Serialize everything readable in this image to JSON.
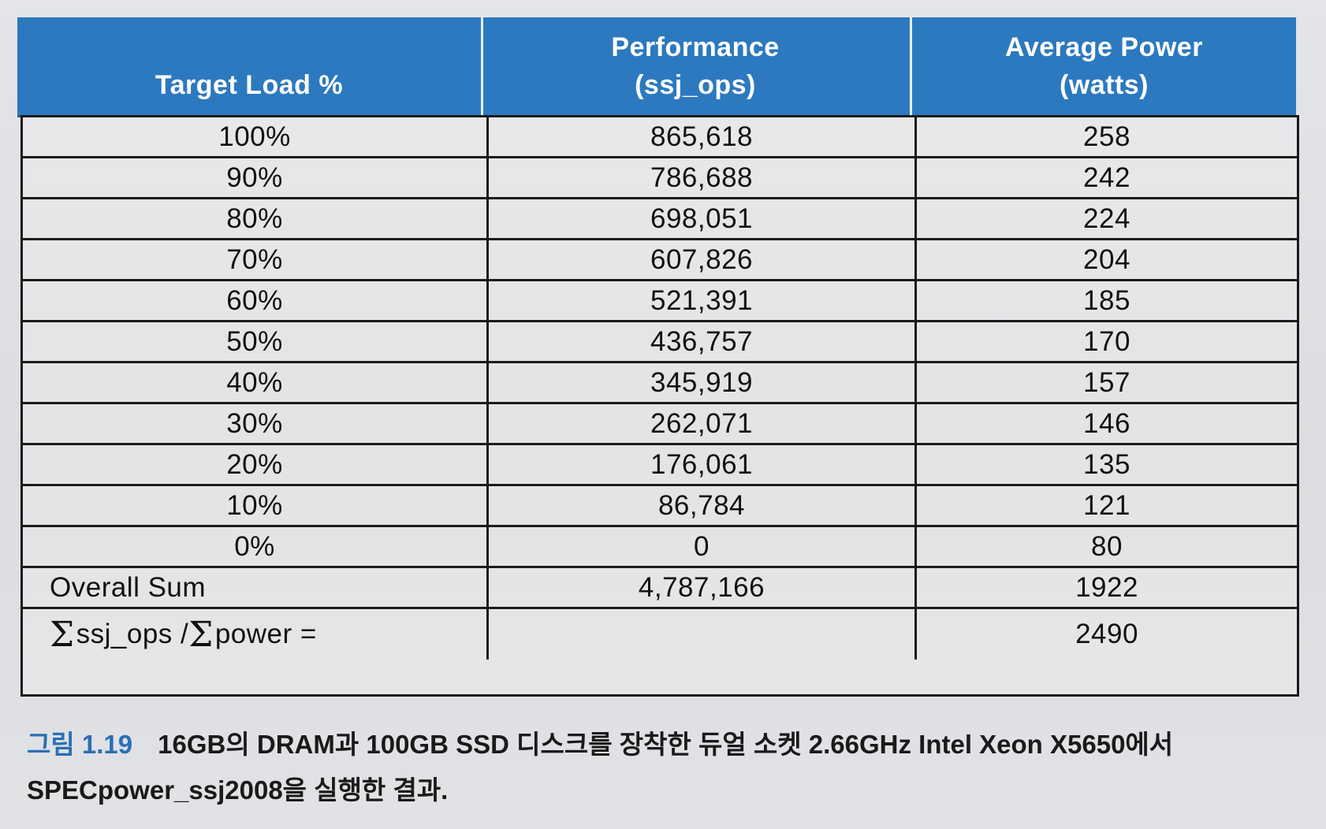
{
  "table": {
    "headers": [
      {
        "lines": [
          "Target Load %"
        ]
      },
      {
        "lines": [
          "Performance",
          "(ssj_ops)"
        ]
      },
      {
        "lines": [
          "Average Power",
          "(watts)"
        ]
      }
    ],
    "rows": [
      {
        "load": "100%",
        "ops": "865,618",
        "power": "258"
      },
      {
        "load": "90%",
        "ops": "786,688",
        "power": "242"
      },
      {
        "load": "80%",
        "ops": "698,051",
        "power": "224"
      },
      {
        "load": "70%",
        "ops": "607,826",
        "power": "204"
      },
      {
        "load": "60%",
        "ops": "521,391",
        "power": "185"
      },
      {
        "load": "50%",
        "ops": "436,757",
        "power": "170"
      },
      {
        "load": "40%",
        "ops": "345,919",
        "power": "157"
      },
      {
        "load": "30%",
        "ops": "262,071",
        "power": "146"
      },
      {
        "load": "20%",
        "ops": "176,061",
        "power": "135"
      },
      {
        "load": "10%",
        "ops": "86,784",
        "power": "121"
      },
      {
        "load": "0%",
        "ops": "0",
        "power": "80"
      }
    ],
    "sum_row": {
      "label": "Overall Sum",
      "ops": "4,787,166",
      "power": "1922"
    },
    "ratio_row": {
      "sigma": "Σ",
      "part1": "ssj_ops / ",
      "part2": "power =",
      "ops": "",
      "power": "2490"
    }
  },
  "caption": {
    "figure_no": "그림 1.19",
    "text": "16GB의 DRAM과 100GB SSD 디스크를 장착한 듀얼 소켓 2.66GHz Intel Xeon X5650에서 SPECpower_ssj2008을 실행한 결과."
  }
}
